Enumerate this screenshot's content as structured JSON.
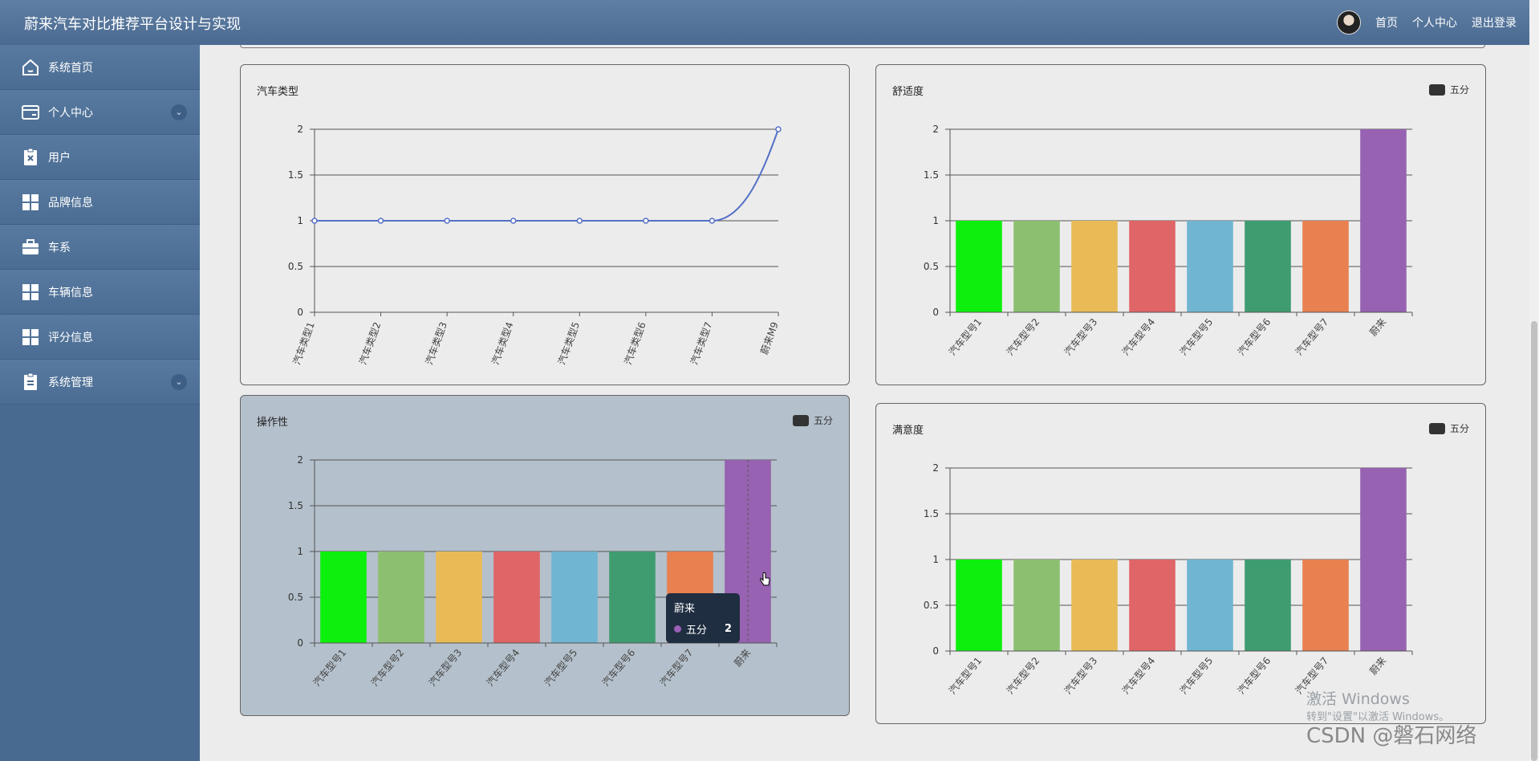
{
  "header": {
    "title": "蔚来汽车对比推荐平台设计与实现",
    "nav": [
      "首页",
      "个人中心",
      "退出登录"
    ]
  },
  "sidebar": {
    "items": [
      {
        "label": "系统首页",
        "icon": "home-icon",
        "chevron": false
      },
      {
        "label": "个人中心",
        "icon": "card-icon",
        "chevron": true
      },
      {
        "label": "用户",
        "icon": "clipboard-x-icon",
        "chevron": false
      },
      {
        "label": "品牌信息",
        "icon": "grid-icon",
        "chevron": false
      },
      {
        "label": "车系",
        "icon": "briefcase-icon",
        "chevron": false
      },
      {
        "label": "车辆信息",
        "icon": "grid-icon",
        "chevron": false
      },
      {
        "label": "评分信息",
        "icon": "grid-icon",
        "chevron": false
      },
      {
        "label": "系统管理",
        "icon": "clipboard-icon",
        "chevron": true
      }
    ]
  },
  "colors": {
    "topbar": "#5a7aa0",
    "sidebar": "#496a90",
    "line": "#5470c6",
    "bars": [
      "#0df00d",
      "#8cc070",
      "#e8bb57",
      "#df6567",
      "#70b5d1",
      "#3f9c70",
      "#e8804f",
      "#9762b1"
    ]
  },
  "chart_data": [
    {
      "type": "line",
      "title": "汽车类型",
      "categories": [
        "汽车类型1",
        "汽车类型2",
        "汽车类型3",
        "汽车类型4",
        "汽车类型5",
        "汽车类型6",
        "汽车类型7",
        "蔚来M9"
      ],
      "values": [
        1,
        1,
        1,
        1,
        1,
        1,
        1,
        2
      ],
      "ylim": [
        0,
        2
      ],
      "yticks": [
        "0",
        "0.5",
        "1",
        "1.5",
        "2"
      ],
      "legend": ""
    },
    {
      "type": "bar",
      "title": "舒适度",
      "categories": [
        "汽车型号1",
        "汽车型号2",
        "汽车型号3",
        "汽车型号4",
        "汽车型号5",
        "汽车型号6",
        "汽车型号7",
        "蔚来"
      ],
      "values": [
        1,
        1,
        1,
        1,
        1,
        1,
        1,
        2
      ],
      "ylim": [
        0,
        2
      ],
      "yticks": [
        "0",
        "0.5",
        "1",
        "1.5",
        "2"
      ],
      "legend": "五分"
    },
    {
      "type": "bar",
      "title": "操作性",
      "categories": [
        "汽车型号1",
        "汽车型号2",
        "汽车型号3",
        "汽车型号4",
        "汽车型号5",
        "汽车型号6",
        "汽车型号7",
        "蔚来"
      ],
      "values": [
        1,
        1,
        1,
        1,
        1,
        1,
        1,
        2
      ],
      "ylim": [
        0,
        2
      ],
      "yticks": [
        "0",
        "0.5",
        "1",
        "1.5",
        "2"
      ],
      "legend": "五分",
      "tooltip": {
        "title": "蔚来",
        "series": "五分",
        "value": "2"
      }
    },
    {
      "type": "bar",
      "title": "满意度",
      "categories": [
        "汽车型号1",
        "汽车型号2",
        "汽车型号3",
        "汽车型号4",
        "汽车型号5",
        "汽车型号6",
        "汽车型号7",
        "蔚来"
      ],
      "values": [
        1,
        1,
        1,
        1,
        1,
        1,
        1,
        2
      ],
      "ylim": [
        0,
        2
      ],
      "yticks": [
        "0",
        "0.5",
        "1",
        "1.5",
        "2"
      ],
      "legend": "五分"
    }
  ],
  "watermark": {
    "line1": "激活 Windows",
    "line2": "转到\"设置\"以激活 Windows。",
    "line3": "CSDN @磐石网络"
  }
}
